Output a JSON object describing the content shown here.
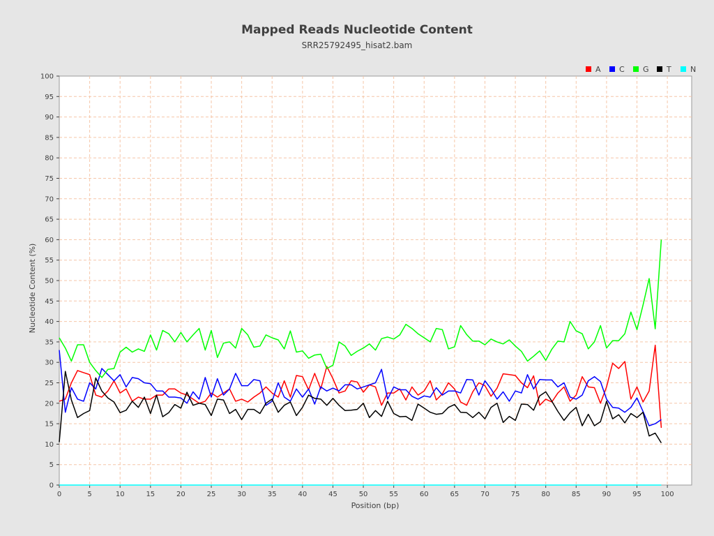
{
  "chart_data": {
    "type": "line",
    "title": "Mapped Reads Nucleotide Content",
    "subtitle": "SRR25792495_hisat2.bam",
    "xlabel": "Position (bp)",
    "ylabel": "Nucleotide Content (%)",
    "xlim": [
      0,
      104
    ],
    "ylim": [
      0,
      100
    ],
    "xticks": [
      0,
      5,
      10,
      15,
      20,
      25,
      30,
      35,
      40,
      45,
      50,
      55,
      60,
      65,
      70,
      75,
      80,
      85,
      90,
      95,
      100
    ],
    "yticks": [
      0,
      5,
      10,
      15,
      20,
      25,
      30,
      35,
      40,
      45,
      50,
      55,
      60,
      65,
      70,
      75,
      80,
      85,
      90,
      95,
      100
    ],
    "grid": true,
    "legend_position": "top-right",
    "x": [
      0,
      1,
      2,
      3,
      4,
      5,
      6,
      7,
      8,
      9,
      10,
      11,
      12,
      13,
      14,
      15,
      16,
      17,
      18,
      19,
      20,
      21,
      22,
      23,
      24,
      25,
      26,
      27,
      28,
      29,
      30,
      31,
      32,
      33,
      34,
      35,
      36,
      37,
      38,
      39,
      40,
      41,
      42,
      43,
      44,
      45,
      46,
      47,
      48,
      49,
      50,
      51,
      52,
      53,
      54,
      55,
      56,
      57,
      58,
      59,
      60,
      61,
      62,
      63,
      64,
      65,
      66,
      67,
      68,
      69,
      70,
      71,
      72,
      73,
      74,
      75,
      76,
      77,
      78,
      79,
      80,
      81,
      82,
      83,
      84,
      85,
      86,
      87,
      88,
      89,
      90,
      91,
      92,
      93,
      94,
      95,
      96,
      97,
      98,
      99
    ],
    "series": [
      {
        "name": "A",
        "color": "#ff0000",
        "values": [
          20.5,
          21.0,
          25.0,
          28.0,
          27.5,
          27.0,
          22.0,
          21.5,
          23.0,
          25.5,
          22.5,
          23.5,
          20.5,
          21.5,
          21.0,
          21.0,
          22.0,
          22.0,
          23.5,
          23.5,
          22.5,
          22.0,
          21.0,
          20.0,
          20.5,
          22.5,
          21.5,
          22.5,
          23.5,
          20.5,
          21.0,
          20.3,
          21.5,
          22.5,
          24.0,
          22.5,
          21.5,
          25.5,
          21.5,
          26.8,
          26.5,
          23.3,
          27.3,
          23.5,
          29.0,
          26.0,
          22.5,
          23.0,
          25.5,
          25.2,
          22.7,
          24.5,
          24.0,
          19.5,
          22.5,
          22.5,
          23.5,
          20.8,
          24.0,
          22.0,
          23.0,
          25.5,
          20.8,
          22.3,
          25.0,
          23.5,
          20.3,
          19.5,
          22.8,
          25.0,
          24.3,
          21.7,
          23.7,
          27.2,
          27.0,
          26.8,
          25.0,
          23.8,
          26.7,
          19.5,
          21.0,
          20.3,
          22.5,
          24.0,
          20.5,
          22.0,
          26.5,
          24.0,
          23.8,
          20.0,
          24.0,
          29.8,
          28.5,
          30.2,
          21.0,
          24.0,
          20.3,
          23.0,
          34.2,
          14.0
        ]
      },
      {
        "name": "C",
        "color": "#0000ff",
        "values": [
          33.0,
          17.8,
          23.8,
          21.0,
          20.5,
          25.0,
          23.5,
          28.5,
          27.0,
          25.5,
          27.0,
          24.0,
          26.3,
          26.0,
          25.0,
          24.8,
          23.0,
          23.0,
          21.5,
          21.5,
          21.3,
          20.0,
          22.8,
          21.0,
          26.3,
          21.5,
          26.0,
          22.0,
          23.5,
          27.3,
          24.3,
          24.3,
          25.8,
          25.5,
          19.5,
          20.5,
          25.0,
          21.5,
          20.5,
          23.5,
          21.5,
          23.5,
          19.8,
          24.0,
          23.0,
          23.7,
          23.0,
          24.5,
          24.5,
          23.5,
          24.0,
          24.5,
          25.0,
          28.3,
          21.0,
          24.0,
          23.3,
          23.3,
          21.7,
          21.0,
          21.8,
          21.5,
          23.8,
          22.0,
          23.0,
          23.0,
          22.5,
          25.8,
          25.7,
          22.0,
          25.5,
          23.5,
          21.0,
          22.8,
          20.5,
          23.0,
          22.5,
          27.0,
          23.5,
          25.8,
          25.7,
          25.7,
          24.0,
          25.0,
          21.5,
          21.0,
          22.0,
          25.5,
          26.5,
          25.3,
          21.0,
          19.0,
          18.8,
          17.8,
          19.0,
          21.3,
          18.0,
          14.5,
          15.0,
          16.0
        ]
      },
      {
        "name": "G",
        "color": "#00ff00",
        "values": [
          36.0,
          33.5,
          30.3,
          34.3,
          34.3,
          30.0,
          28.0,
          26.3,
          28.3,
          28.5,
          32.5,
          33.7,
          32.5,
          33.3,
          32.7,
          36.7,
          33.0,
          37.8,
          37.0,
          35.0,
          37.3,
          35.0,
          36.7,
          38.3,
          33.0,
          37.8,
          31.2,
          34.7,
          35.0,
          33.5,
          38.3,
          36.7,
          33.7,
          34.0,
          36.7,
          36.0,
          35.5,
          33.3,
          37.7,
          32.5,
          32.8,
          31.0,
          31.8,
          32.0,
          28.5,
          29.3,
          35.0,
          34.0,
          31.7,
          32.7,
          33.5,
          34.5,
          33.0,
          35.8,
          36.2,
          35.7,
          36.7,
          39.3,
          38.3,
          37.0,
          36.0,
          35.0,
          38.3,
          38.0,
          33.3,
          33.8,
          39.0,
          36.8,
          35.2,
          35.2,
          34.3,
          35.7,
          35.0,
          34.5,
          35.5,
          34.0,
          32.7,
          30.3,
          31.5,
          32.8,
          30.5,
          33.2,
          35.2,
          35.0,
          40.0,
          37.7,
          37.0,
          33.3,
          35.0,
          39.0,
          33.5,
          35.3,
          35.3,
          37.0,
          42.3,
          38.0,
          44.0,
          50.5,
          38.2,
          60.0
        ]
      },
      {
        "name": "T",
        "color": "#000000",
        "values": [
          10.5,
          27.8,
          20.8,
          16.5,
          17.5,
          18.2,
          26.2,
          23.0,
          21.3,
          20.3,
          17.7,
          18.3,
          20.5,
          19.0,
          21.5,
          17.5,
          22.0,
          16.7,
          17.7,
          19.7,
          18.8,
          22.7,
          19.5,
          20.0,
          19.7,
          17.0,
          21.0,
          20.8,
          17.5,
          18.5,
          16.0,
          18.5,
          18.5,
          17.5,
          20.0,
          21.0,
          17.8,
          19.5,
          20.3,
          17.0,
          19.0,
          22.0,
          21.2,
          21.0,
          19.5,
          21.2,
          19.5,
          18.2,
          18.3,
          18.5,
          20.0,
          16.5,
          18.2,
          16.8,
          20.5,
          17.5,
          16.7,
          16.8,
          15.8,
          19.8,
          18.8,
          17.8,
          17.3,
          17.5,
          19.0,
          19.7,
          17.8,
          17.7,
          16.5,
          17.8,
          16.2,
          19.0,
          20.0,
          15.3,
          16.8,
          15.8,
          19.8,
          19.7,
          18.3,
          21.8,
          22.8,
          20.5,
          18.0,
          15.8,
          17.7,
          19.0,
          14.5,
          17.3,
          14.5,
          15.5,
          20.5,
          16.2,
          17.2,
          15.2,
          17.5,
          16.5,
          17.8,
          12.0,
          12.7,
          10.3
        ]
      },
      {
        "name": "N",
        "color": "#00ffff",
        "values": [
          0,
          0,
          0,
          0,
          0,
          0,
          0,
          0,
          0,
          0,
          0,
          0,
          0,
          0,
          0,
          0,
          0,
          0,
          0,
          0,
          0,
          0,
          0,
          0,
          0,
          0,
          0,
          0,
          0,
          0,
          0,
          0,
          0,
          0,
          0,
          0,
          0,
          0,
          0,
          0,
          0,
          0,
          0,
          0,
          0,
          0,
          0,
          0,
          0,
          0,
          0,
          0,
          0,
          0,
          0,
          0,
          0,
          0,
          0,
          0,
          0,
          0,
          0,
          0,
          0,
          0,
          0,
          0,
          0,
          0,
          0,
          0,
          0,
          0,
          0,
          0,
          0,
          0,
          0,
          0,
          0,
          0,
          0,
          0,
          0,
          0,
          0,
          0,
          0,
          0,
          0,
          0,
          0,
          0,
          0,
          0,
          0,
          0,
          0,
          0
        ]
      }
    ]
  }
}
